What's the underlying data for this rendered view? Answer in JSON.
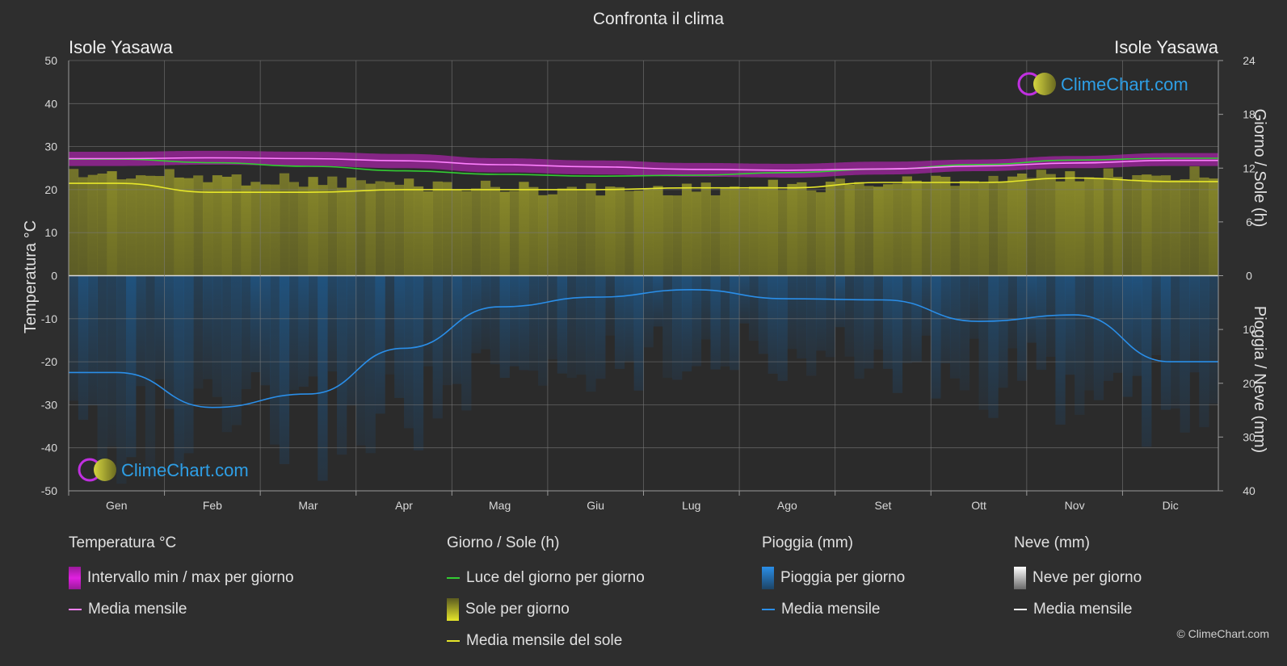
{
  "title": "Confronta il clima",
  "location_left": "Isole Yasawa",
  "location_right": "Isole Yasawa",
  "axis_left_label": "Temperatura °C",
  "axis_right_top_label": "Giorno / Sole (h)",
  "axis_right_bottom_label": "Pioggia / Neve (mm)",
  "watermark": "ClimeChart.com",
  "copyright": "© ClimeChart.com",
  "colors": {
    "background": "#2e2e2e",
    "temp_range": "#d020d0",
    "temp_mean": "#ff80ff",
    "daylight": "#33cc33",
    "sun_fill": "#a0a028",
    "sun_mean": "#e6e62a",
    "rain_fill": "#1d5f99",
    "rain_mean": "#2a8ee8",
    "snow_mean": "#ffffff"
  },
  "legend": {
    "temperature": {
      "header": "Temperatura °C",
      "range_label": "Intervallo min / max per giorno",
      "mean_label": "Media mensile"
    },
    "sun": {
      "header": "Giorno / Sole (h)",
      "daylight_label": "Luce del giorno per giorno",
      "sun_label": "Sole per giorno",
      "sun_mean_label": "Media mensile del sole"
    },
    "rain": {
      "header": "Pioggia (mm)",
      "rain_label": "Pioggia per giorno",
      "mean_label": "Media mensile"
    },
    "snow": {
      "header": "Neve (mm)",
      "snow_label": "Neve per giorno",
      "mean_label": "Media mensile"
    }
  },
  "chart_data": {
    "type": "line",
    "months": [
      "Gen",
      "Feb",
      "Mar",
      "Apr",
      "Mag",
      "Giu",
      "Lug",
      "Ago",
      "Set",
      "Ott",
      "Nov",
      "Dic"
    ],
    "y_left": {
      "min": -50,
      "max": 50,
      "ticks": [
        50,
        40,
        30,
        20,
        10,
        0,
        -10,
        -20,
        -30,
        -40,
        -50
      ]
    },
    "y_right_top": {
      "min": 0,
      "max": 24,
      "ticks": [
        24,
        18,
        12,
        6,
        0
      ]
    },
    "y_right_bottom": {
      "min": 0,
      "max": 40,
      "ticks": [
        0,
        10,
        20,
        30,
        40
      ]
    },
    "grid": true,
    "series": [
      {
        "name": "Intervallo min / max per giorno",
        "axis": "temperature",
        "min": [
          25.5,
          25.8,
          25.5,
          25.0,
          24.0,
          23.5,
          23.0,
          22.8,
          23.5,
          24.3,
          25.0,
          25.5
        ],
        "max": [
          28.8,
          29.0,
          28.8,
          28.3,
          27.3,
          26.8,
          26.2,
          26.0,
          26.5,
          27.0,
          27.8,
          28.5
        ]
      },
      {
        "name": "Media mensile",
        "axis": "temperature",
        "values": [
          27.2,
          27.4,
          27.2,
          26.7,
          25.8,
          25.3,
          24.7,
          24.5,
          24.8,
          25.5,
          26.2,
          26.8
        ]
      },
      {
        "name": "Luce del giorno per giorno",
        "axis": "hours",
        "values": [
          13.0,
          12.6,
          12.2,
          11.7,
          11.3,
          11.1,
          11.2,
          11.5,
          11.9,
          12.4,
          12.9,
          13.1
        ]
      },
      {
        "name": "Sole per giorno",
        "axis": "hours",
        "values": [
          12.2,
          11.9,
          11.5,
          11.1,
          10.7,
          10.4,
          10.5,
          10.8,
          11.3,
          11.8,
          12.1,
          12.3
        ]
      },
      {
        "name": "Media mensile del sole",
        "axis": "hours",
        "values": [
          10.3,
          9.3,
          9.3,
          9.6,
          9.6,
          9.6,
          9.8,
          9.8,
          10.4,
          10.4,
          10.9,
          10.5
        ]
      },
      {
        "name": "Pioggia per giorno",
        "axis": "rain",
        "values": [
          38,
          40,
          38,
          34,
          28,
          22,
          18,
          20,
          22,
          26,
          30,
          36
        ]
      },
      {
        "name": "Media mensile",
        "axis": "rain",
        "values": [
          18.0,
          24.5,
          22.0,
          13.5,
          5.8,
          4.0,
          2.6,
          4.3,
          4.5,
          8.5,
          7.3,
          16.0
        ]
      }
    ]
  }
}
